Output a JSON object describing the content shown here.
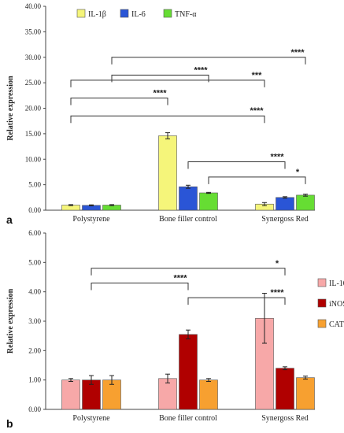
{
  "chart_data": [
    {
      "panel_label": "a",
      "type": "bar",
      "ylabel": "Relative expression",
      "ylim": [
        0,
        40
      ],
      "yticks": [
        "0.00",
        "5.00",
        "10.00",
        "15.00",
        "20.00",
        "25.00",
        "30.00",
        "35.00",
        "40.00"
      ],
      "categories": [
        "Polystyrene",
        "Bone filler control",
        "Synergoss Red"
      ],
      "legend_position": "top",
      "series": [
        {
          "name": "IL-1β",
          "color": "#f5f57a",
          "values": [
            1.0,
            14.6,
            1.2
          ],
          "errors": [
            0.1,
            0.6,
            0.3
          ]
        },
        {
          "name": "IL-6",
          "color": "#2a55d6",
          "values": [
            0.95,
            4.6,
            2.5
          ],
          "errors": [
            0.1,
            0.3,
            0.15
          ]
        },
        {
          "name": "TNF-α",
          "color": "#66dd33",
          "values": [
            1.0,
            3.4,
            2.95
          ],
          "errors": [
            0.1,
            0.1,
            0.2
          ]
        }
      ],
      "significance": [
        {
          "from": [
            0,
            2
          ],
          "to": [
            2,
            2
          ],
          "level": 30.0,
          "label": "****"
        },
        {
          "from": [
            0,
            2
          ],
          "to": [
            1,
            2
          ],
          "level": 26.5,
          "label": "****"
        },
        {
          "from": [
            0,
            0
          ],
          "to": [
            2,
            0
          ],
          "level": 25.5,
          "label": "***"
        },
        {
          "from": [
            0,
            0
          ],
          "to": [
            1,
            0
          ],
          "level": 22.0,
          "label": "****"
        },
        {
          "from": [
            0,
            0
          ],
          "to": [
            2,
            0
          ],
          "level": 18.5,
          "label": "****"
        },
        {
          "from": [
            1,
            1
          ],
          "to": [
            2,
            1
          ],
          "level": 9.5,
          "label": "****"
        },
        {
          "from": [
            1,
            2
          ],
          "to": [
            2,
            2
          ],
          "level": 6.5,
          "label": "*"
        }
      ]
    },
    {
      "panel_label": "b",
      "type": "bar",
      "ylabel": "Relative expression",
      "ylim": [
        0,
        6
      ],
      "yticks": [
        "0.00",
        "1.00",
        "2.00",
        "3.00",
        "4.00",
        "5.00",
        "6.00"
      ],
      "categories": [
        "Polystyrene",
        "Bone filler control",
        "Synergoss Red"
      ],
      "legend_position": "right",
      "series": [
        {
          "name": "IL-10",
          "color": "#f7a8a8",
          "values": [
            1.0,
            1.05,
            3.1
          ],
          "errors": [
            0.05,
            0.15,
            0.85
          ]
        },
        {
          "name": "iNOS",
          "color": "#b00000",
          "values": [
            1.0,
            2.55,
            1.4
          ],
          "errors": [
            0.15,
            0.15,
            0.05
          ]
        },
        {
          "name": "CAT",
          "color": "#f7a030",
          "values": [
            1.0,
            1.0,
            1.08
          ],
          "errors": [
            0.15,
            0.05,
            0.05
          ]
        }
      ],
      "significance": [
        {
          "from": [
            0,
            1
          ],
          "to": [
            2,
            1
          ],
          "level": 4.8,
          "label": "*"
        },
        {
          "from": [
            0,
            1
          ],
          "to": [
            1,
            1
          ],
          "level": 4.3,
          "label": "****"
        },
        {
          "from": [
            1,
            1
          ],
          "to": [
            2,
            1
          ],
          "level": 3.8,
          "label": "****"
        }
      ]
    }
  ]
}
